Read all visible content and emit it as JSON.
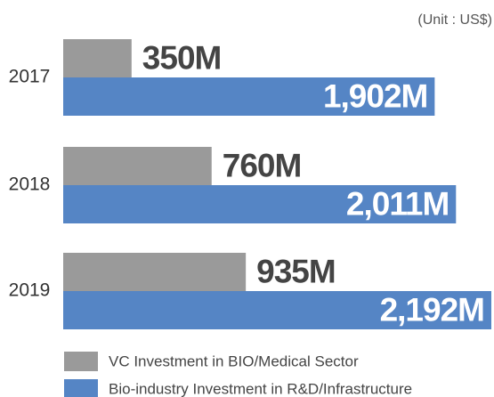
{
  "chart_data": {
    "type": "bar",
    "orientation": "horizontal",
    "unit_note": "(Unit : US$)",
    "categories": [
      "2017",
      "2018",
      "2019"
    ],
    "series": [
      {
        "name": "VC Investment in BIO/Medical Sector",
        "color": "#9a9a9a",
        "values": [
          350,
          760,
          935
        ],
        "value_labels": [
          "350M",
          "760M",
          "935M"
        ]
      },
      {
        "name": "Bio-industry Investment in R&D/Infrastructure",
        "color": "#5585c5",
        "values": [
          1902,
          2011,
          2192
        ],
        "value_labels": [
          "1,902M",
          "2,011M",
          "2,192M"
        ]
      }
    ]
  }
}
